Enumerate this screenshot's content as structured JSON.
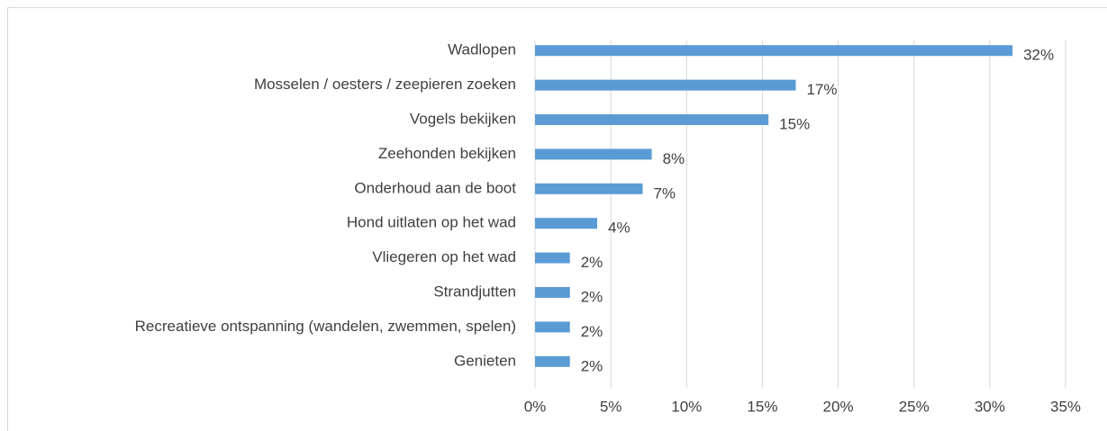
{
  "chart_data": {
    "type": "barh",
    "categories": [
      "Wadlopen",
      "Mosselen / oesters / zeepieren zoeken",
      "Vogels bekijken",
      "Zeehonden bekijken",
      "Onderhoud aan de boot",
      "Hond uitlaten op het wad",
      "Vliegeren op het wad",
      "Strandjutten",
      "Recreatieve ontspanning (wandelen, zwemmen, spelen)",
      "Genieten"
    ],
    "values": [
      31.5,
      17.2,
      15.4,
      7.7,
      7.1,
      4.1,
      2.3,
      2.3,
      2.3,
      2.3
    ],
    "value_labels": [
      "32%",
      "17%",
      "15%",
      "8%",
      "7%",
      "4%",
      "2%",
      "2%",
      "2%",
      "2%"
    ],
    "color": "#5b9bd5",
    "xlim": [
      0,
      35
    ],
    "xticks": [
      {
        "value": 0,
        "label": "0%"
      },
      {
        "value": 5,
        "label": "5%"
      },
      {
        "value": 10,
        "label": "10%"
      },
      {
        "value": 15,
        "label": "15%"
      },
      {
        "value": 20,
        "label": "20%"
      },
      {
        "value": 25,
        "label": "25%"
      },
      {
        "value": 30,
        "label": "30%"
      },
      {
        "value": 35,
        "label": "35%"
      }
    ],
    "grid": true
  }
}
